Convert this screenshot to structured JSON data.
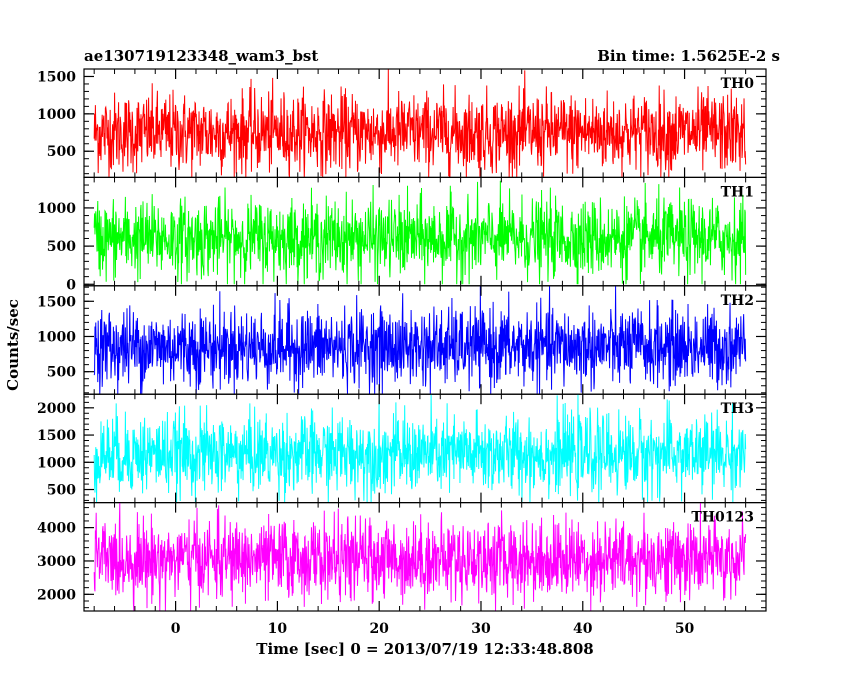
{
  "chart_data": {
    "type": "line",
    "title_left": "ae130719123348_wam3_bst",
    "title_right": "Bin time: 1.5625E-2 s",
    "xlabel": "Time [sec] 0 = 2013/07/19 12:33:48.808",
    "ylabel": "Counts/sec",
    "xlim": [
      -9,
      58
    ],
    "x_data_range": [
      -8,
      56
    ],
    "bin_time": 0.015625,
    "x_ticks": [
      0,
      10,
      20,
      30,
      40,
      50
    ],
    "x_tick_labels": [
      "0",
      "10",
      "20",
      "30",
      "40",
      "50"
    ],
    "grid": false,
    "panels": [
      {
        "name": "TH0",
        "color": "#ff0000",
        "ylim": [
          150,
          1600
        ],
        "y_ticks": [
          500,
          1000,
          1500
        ],
        "y_tick_labels": [
          "500",
          "1000",
          "1500"
        ],
        "mean": 750,
        "min": 150,
        "max": 1600
      },
      {
        "name": "TH1",
        "color": "#00ff00",
        "ylim": [
          -20,
          1400
        ],
        "y_ticks": [
          0,
          500,
          1000
        ],
        "y_tick_labels": [
          "0",
          "500",
          "1000"
        ],
        "mean": 600,
        "min": 0,
        "max": 1400
      },
      {
        "name": "TH2",
        "color": "#0000ff",
        "ylim": [
          180,
          1720
        ],
        "y_ticks": [
          500,
          1000,
          1500
        ],
        "y_tick_labels": [
          "500",
          "1000",
          "1500"
        ],
        "mean": 850,
        "min": 180,
        "max": 1720
      },
      {
        "name": "TH3",
        "color": "#00ffff",
        "ylim": [
          260,
          2250
        ],
        "y_ticks": [
          500,
          1000,
          1500,
          2000
        ],
        "y_tick_labels": [
          "500",
          "1000",
          "1500",
          "2000"
        ],
        "mean": 1150,
        "min": 260,
        "max": 2250
      },
      {
        "name": "TH0123",
        "color": "#ff00ff",
        "ylim": [
          1500,
          4750
        ],
        "y_ticks": [
          2000,
          3000,
          4000
        ],
        "y_tick_labels": [
          "2000",
          "3000",
          "4000"
        ],
        "mean": 3050,
        "min": 1500,
        "max": 4750
      }
    ]
  }
}
